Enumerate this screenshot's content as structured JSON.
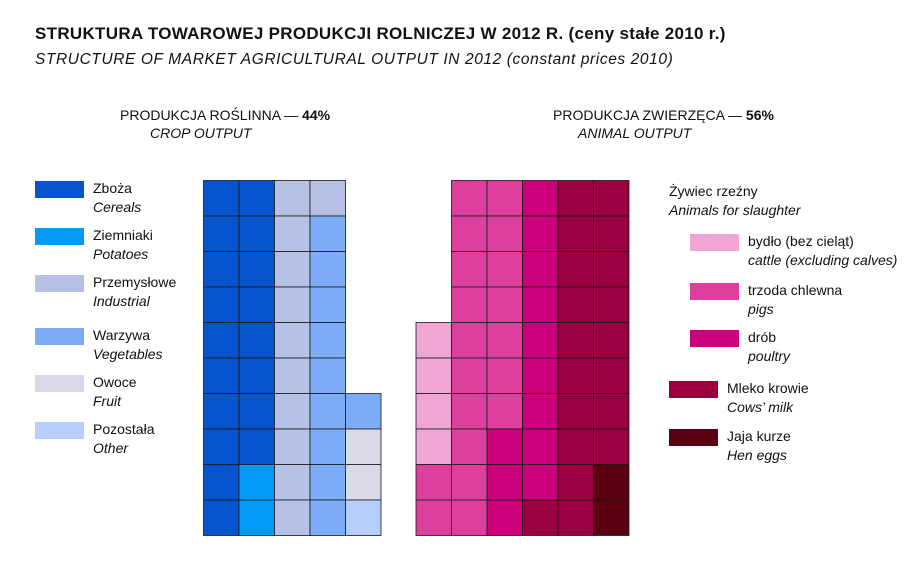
{
  "title": "STRUKTURA TOWAROWEJ PRODUKCJI ROLNICZEJ W 2012 R. (ceny stałe 2010 r.)",
  "subtitle": "STRUCTURE OF MARKET AGRICULTURAL OUTPUT IN 2012 (constant prices 2010)",
  "chart_data": {
    "type": "waffle",
    "unit_note": "each square = 1%",
    "groups": [
      {
        "id": "crop",
        "name_pl": "PRODUKCJA ROŚLINNA — ",
        "share_label": "44%",
        "name_en": "CROP OUTPUT",
        "total": 44,
        "categories": [
          {
            "key": "cereals",
            "label_pl": "Zboża",
            "label_en": "Cereals",
            "value": 18,
            "color": "#0755cd"
          },
          {
            "key": "potatoes",
            "label_pl": "Ziemniaki",
            "label_en": "Potatoes",
            "value": 2,
            "color": "#0599f7"
          },
          {
            "key": "industrial",
            "label_pl": "Przemysłowe",
            "label_en": "Industrial",
            "value": 11,
            "color": "#b6c1e5"
          },
          {
            "key": "vegetables",
            "label_pl": "Warzywa",
            "label_en": "Vegetables",
            "value": 10,
            "color": "#7dacf9"
          },
          {
            "key": "fruit",
            "label_pl": "Owoce",
            "label_en": "Fruit",
            "value": 2,
            "color": "#d9d9e8"
          },
          {
            "key": "other",
            "label_pl": "Pozostała",
            "label_en": "Other",
            "value": 1,
            "color": "#b5cefb"
          }
        ]
      },
      {
        "id": "animal",
        "name_pl": "PRODUKCJA ZWIERZĘCA — ",
        "share_label": "56%",
        "name_en": "ANIMAL OUTPUT",
        "total": 56,
        "slaughter_label_pl": "Żywiec rzeźny",
        "slaughter_label_en": "Animals for slaughter",
        "categories": [
          {
            "key": "cattle",
            "label_pl": "bydło (bez cieląt)",
            "label_en": "cattle (excluding calves)",
            "value": 4,
            "color": "#f0a5d4",
            "subgroup": "slaughter"
          },
          {
            "key": "pigs",
            "label_pl": "trzoda chlewna",
            "label_en": "pigs",
            "value": 19,
            "color": "#dd3f9f",
            "subgroup": "slaughter"
          },
          {
            "key": "poultry",
            "label_pl": "drób",
            "label_en": "poultry",
            "value": 12,
            "color": "#cc007a",
            "subgroup": "slaughter"
          },
          {
            "key": "milk",
            "label_pl": "Mleko krowie",
            "label_en": "Cows’ milk",
            "value": 19,
            "color": "#9a0040"
          },
          {
            "key": "eggs",
            "label_pl": "Jaja kurze",
            "label_en": "Hen eggs",
            "value": 2,
            "color": "#5b0010"
          }
        ]
      }
    ]
  }
}
